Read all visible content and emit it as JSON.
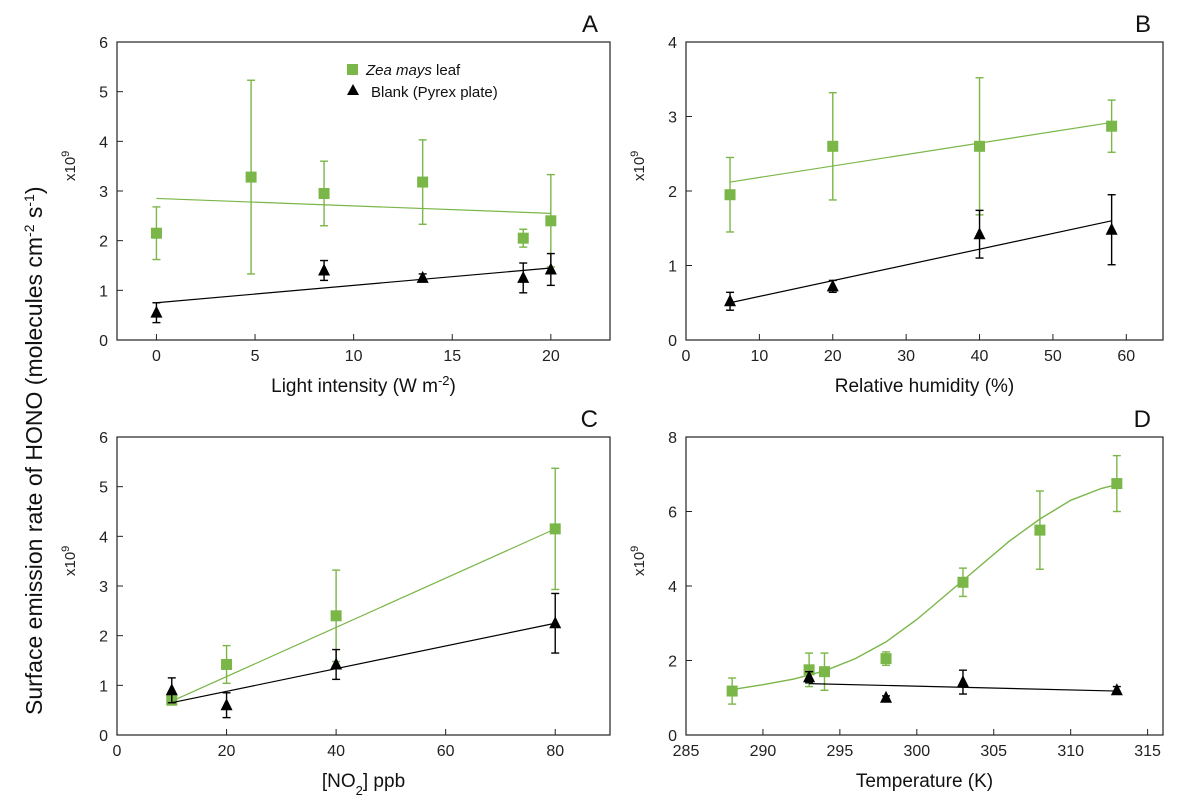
{
  "figure": {
    "ylabel": "Surface emission rate of HONO (molecules cm-2 s-1)",
    "legend": [
      {
        "name_italic": "Zea mays",
        "name_rest": " leaf",
        "color": "#7ab648",
        "marker": "square"
      },
      {
        "name": "Blank (Pyrex plate)",
        "color": "#000000",
        "marker": "triangle"
      }
    ]
  },
  "chart_data": [
    {
      "type": "scatter",
      "panel": "A",
      "xlabel": "Light intensity (W m-2)",
      "multiplier": "x10^9",
      "xlim": [
        -2,
        23
      ],
      "ylim": [
        0,
        6
      ],
      "xticks": [
        0,
        5,
        10,
        15,
        20
      ],
      "yticks": [
        0,
        1,
        2,
        3,
        4,
        5,
        6
      ],
      "series": [
        {
          "name": "Zea mays leaf",
          "color": "#7ab648",
          "x": [
            0,
            4.8,
            8.5,
            13.5,
            18.6,
            20
          ],
          "y": [
            2.15,
            3.28,
            2.95,
            3.18,
            2.05,
            2.4
          ],
          "err": [
            0.53,
            1.95,
            0.65,
            0.85,
            0.18,
            0.93
          ],
          "fit": [
            [
              0,
              2.85
            ],
            [
              20,
              2.55
            ]
          ]
        },
        {
          "name": "Blank (Pyrex plate)",
          "color": "#000000",
          "x": [
            0,
            8.5,
            13.5,
            18.6,
            20
          ],
          "y": [
            0.55,
            1.4,
            1.25,
            1.25,
            1.42
          ],
          "err": [
            0.2,
            0.2,
            0.08,
            0.3,
            0.32
          ],
          "fit": [
            [
              0,
              0.75
            ],
            [
              20,
              1.45
            ]
          ]
        }
      ]
    },
    {
      "type": "scatter",
      "panel": "B",
      "xlabel": "Relative humidity (%)",
      "multiplier": "x10^9",
      "xlim": [
        0,
        65
      ],
      "ylim": [
        0,
        4
      ],
      "xticks": [
        0,
        10,
        20,
        30,
        40,
        50,
        60
      ],
      "yticks": [
        0,
        1,
        2,
        3,
        4
      ],
      "series": [
        {
          "name": "Zea mays leaf",
          "color": "#7ab648",
          "x": [
            6,
            20,
            40,
            58
          ],
          "y": [
            1.95,
            2.6,
            2.6,
            2.87
          ],
          "err": [
            0.5,
            0.72,
            0.92,
            0.35
          ],
          "fit": [
            [
              6,
              2.12
            ],
            [
              58,
              2.92
            ]
          ]
        },
        {
          "name": "Blank (Pyrex plate)",
          "color": "#000000",
          "x": [
            6,
            20,
            40,
            58
          ],
          "y": [
            0.52,
            0.72,
            1.42,
            1.48
          ],
          "err": [
            0.12,
            0.08,
            0.32,
            0.47
          ],
          "fit": [
            [
              6,
              0.5
            ],
            [
              58,
              1.6
            ]
          ]
        }
      ]
    },
    {
      "type": "scatter",
      "panel": "C",
      "xlabel": "[NO2] ppb",
      "multiplier": "x10^9",
      "xlim": [
        0,
        90
      ],
      "ylim": [
        0,
        6
      ],
      "xticks": [
        0,
        20,
        40,
        60,
        80
      ],
      "yticks": [
        0,
        1,
        2,
        3,
        4,
        5,
        6
      ],
      "series": [
        {
          "name": "Zea mays leaf",
          "color": "#7ab648",
          "x": [
            10,
            20,
            40,
            80
          ],
          "y": [
            0.7,
            1.42,
            2.4,
            4.15
          ],
          "err": [
            0.05,
            0.38,
            0.92,
            1.22
          ],
          "fit": [
            [
              10,
              0.68
            ],
            [
              80,
              4.15
            ]
          ]
        },
        {
          "name": "Blank (Pyrex plate)",
          "color": "#000000",
          "x": [
            10,
            20,
            40,
            80
          ],
          "y": [
            0.9,
            0.6,
            1.42,
            2.25
          ],
          "err": [
            0.25,
            0.25,
            0.3,
            0.6
          ],
          "fit": [
            [
              10,
              0.65
            ],
            [
              80,
              2.25
            ]
          ]
        }
      ]
    },
    {
      "type": "scatter",
      "panel": "D",
      "xlabel": "Temperature (K)",
      "multiplier": "x10^9",
      "xlim": [
        285,
        316
      ],
      "ylim": [
        0,
        8
      ],
      "xticks": [
        285,
        290,
        295,
        300,
        305,
        310,
        315
      ],
      "yticks": [
        0,
        2,
        4,
        6,
        8
      ],
      "series": [
        {
          "name": "Zea mays leaf",
          "color": "#7ab648",
          "x": [
            288,
            293,
            294,
            298,
            303,
            308,
            313
          ],
          "y": [
            1.18,
            1.75,
            1.7,
            2.05,
            4.1,
            5.5,
            6.75
          ],
          "err": [
            0.35,
            0.45,
            0.5,
            0.18,
            0.38,
            1.05,
            0.75
          ],
          "curve": [
            [
              288,
              1.22
            ],
            [
              290,
              1.35
            ],
            [
              292,
              1.5
            ],
            [
              294,
              1.72
            ],
            [
              296,
              2.05
            ],
            [
              298,
              2.5
            ],
            [
              300,
              3.1
            ],
            [
              302,
              3.8
            ],
            [
              304,
              4.5
            ],
            [
              306,
              5.2
            ],
            [
              308,
              5.8
            ],
            [
              310,
              6.3
            ],
            [
              312,
              6.62
            ],
            [
              313,
              6.72
            ]
          ]
        },
        {
          "name": "Blank (Pyrex plate)",
          "color": "#000000",
          "x": [
            293,
            298,
            303,
            313
          ],
          "y": [
            1.55,
            1.0,
            1.42,
            1.2
          ],
          "err": [
            0.15,
            0.05,
            0.32,
            0.1
          ],
          "fit": [
            [
              293,
              1.38
            ],
            [
              313,
              1.18
            ]
          ]
        }
      ]
    }
  ]
}
